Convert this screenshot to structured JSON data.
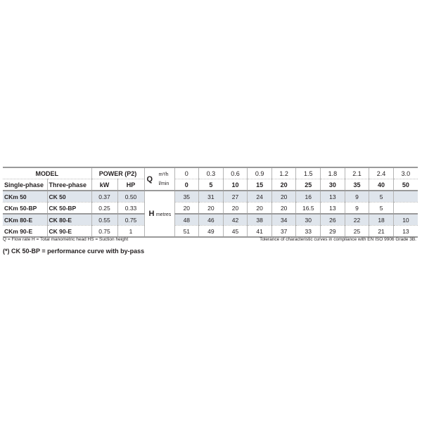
{
  "header": {
    "model": "MODEL",
    "power": "POWER (P2)",
    "single_phase": "Single-phase",
    "three_phase": "Three-phase",
    "kw": "kW",
    "hp": "HP",
    "q": "Q",
    "q_unit1": "m³/h",
    "q_unit2": "l/min",
    "h": "H",
    "h_unit": "metres"
  },
  "flow_m3h": [
    "0",
    "0.3",
    "0.6",
    "0.9",
    "1.2",
    "1.5",
    "1.8",
    "2.1",
    "2.4",
    "3.0"
  ],
  "flow_lmin": [
    "0",
    "5",
    "10",
    "15",
    "20",
    "25",
    "30",
    "35",
    "40",
    "50"
  ],
  "rows": [
    {
      "single": "CKm 50",
      "three": "CK 50",
      "kw": "0.37",
      "hp": "0.50",
      "h": [
        "35",
        "31",
        "27",
        "24",
        "20",
        "16",
        "13",
        "9",
        "5",
        ""
      ]
    },
    {
      "single": "CKm 50-BP",
      "three": "CK 50-BP",
      "kw": "0.25",
      "hp": "0.33",
      "h": [
        "20",
        "20",
        "20",
        "20",
        "20",
        "16.5",
        "13",
        "9",
        "5",
        ""
      ]
    },
    {
      "single": "CKm 80-E",
      "three": "CK 80-E",
      "kw": "0.55",
      "hp": "0.75",
      "h": [
        "48",
        "46",
        "42",
        "38",
        "34",
        "30",
        "26",
        "22",
        "18",
        "10"
      ]
    },
    {
      "single": "CKm 90-E",
      "three": "CK 90-E",
      "kw": "0.75",
      "hp": "1",
      "h": [
        "51",
        "49",
        "45",
        "41",
        "37",
        "33",
        "29",
        "25",
        "21",
        "13"
      ]
    }
  ],
  "footer": {
    "legend": "Q = Flow rate   H = Total manometric head   HS = Suction height",
    "note": "(*) CK 50-BP = performance curve with by-pass",
    "tolerance": "Tolerance of characteristic curves in compliance with EN ISO 9906 Grade 3B."
  }
}
